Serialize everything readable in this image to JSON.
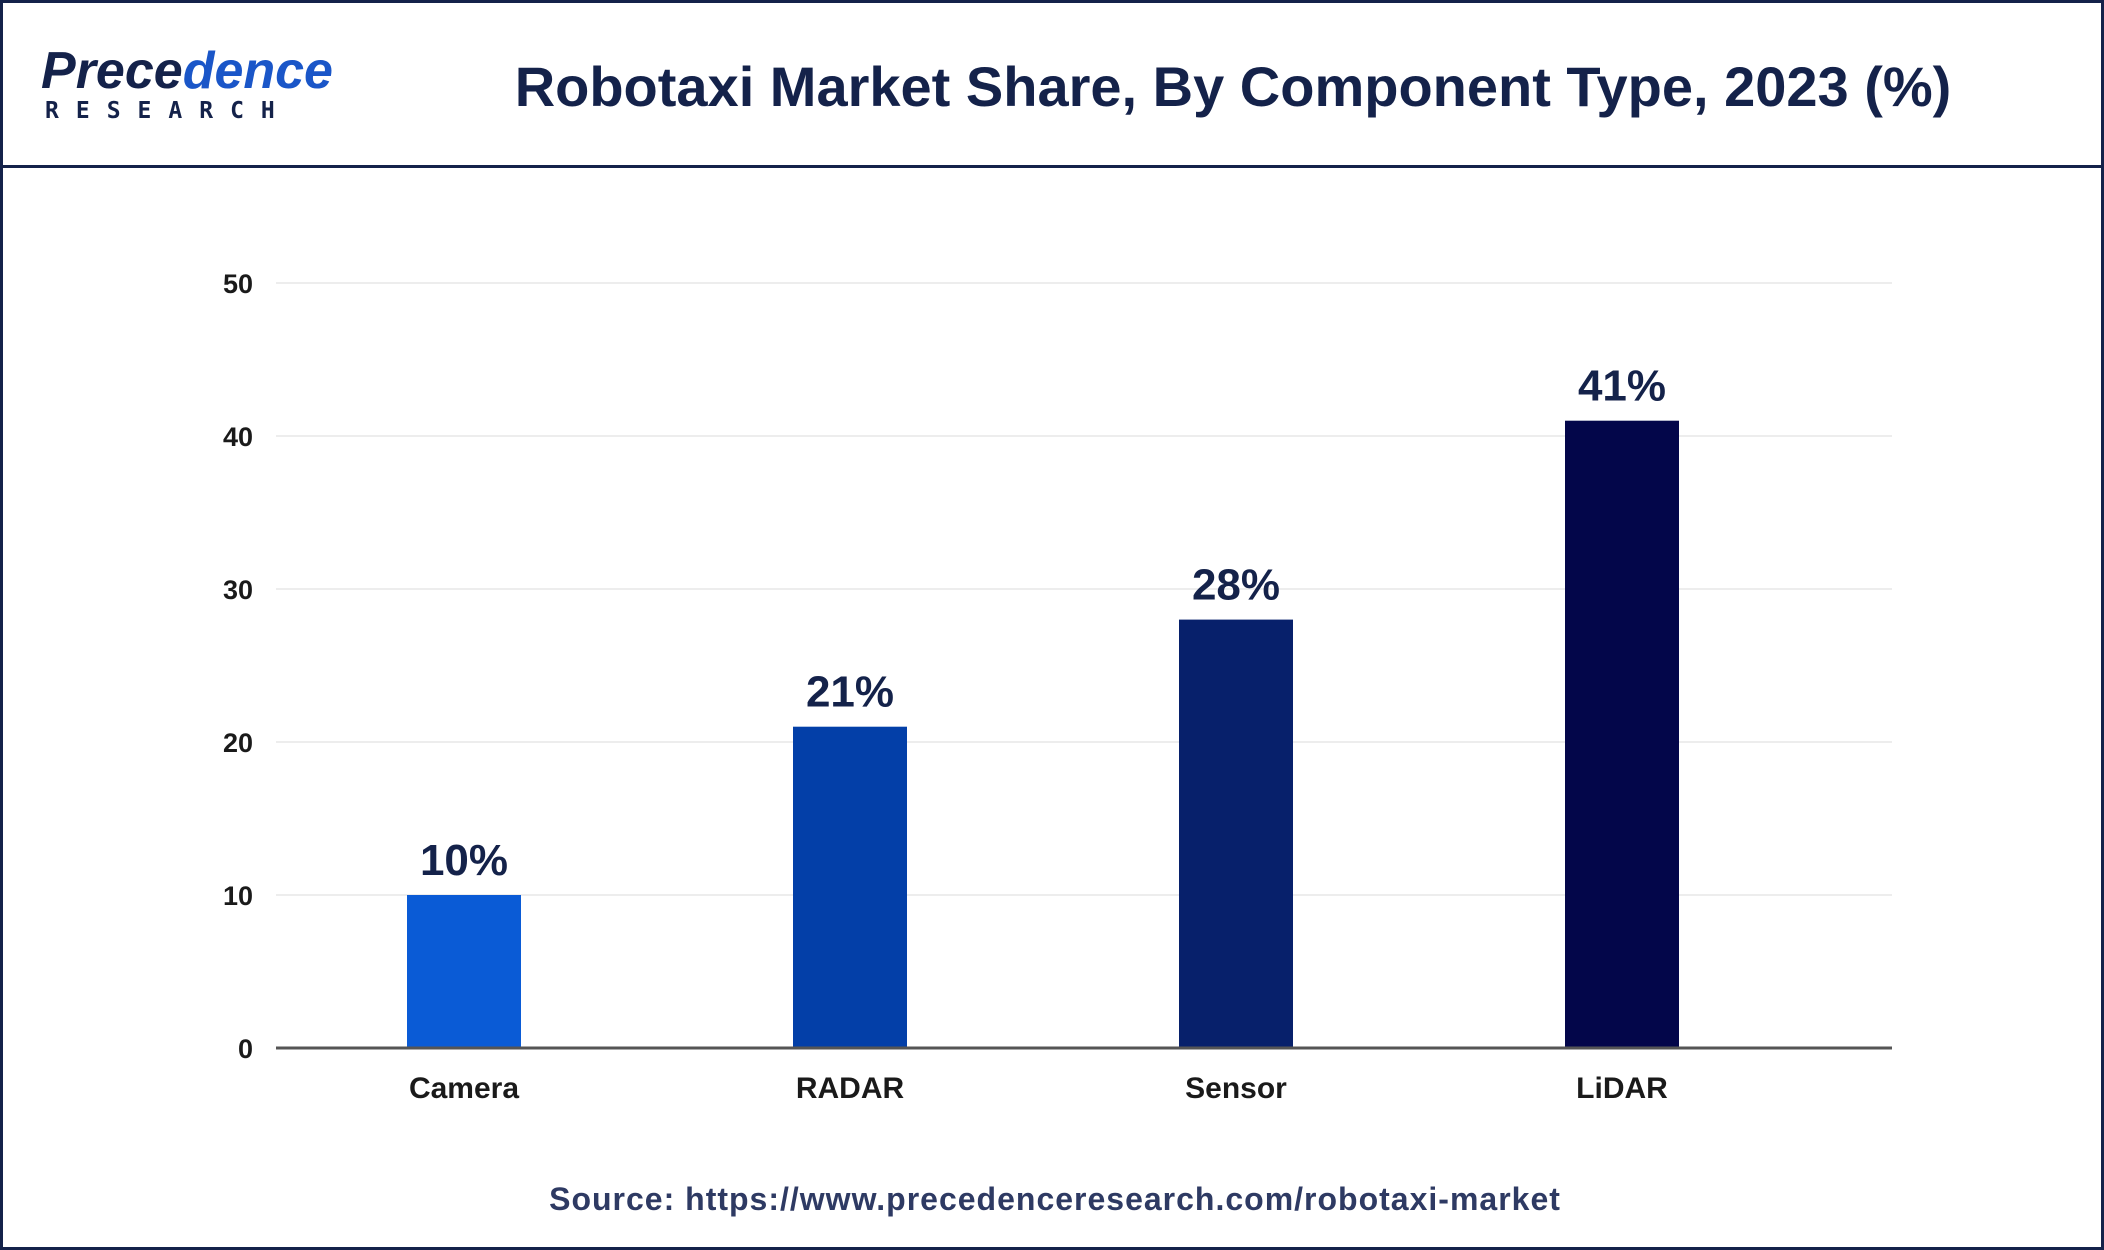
{
  "logo": {
    "word_main": "P",
    "word_rest_dark": "rece",
    "word_rest_accent": "dence",
    "subtitle": "RESEARCH"
  },
  "title": "Robotaxi Market Share, By Component Type, 2023 (%)",
  "source": "Source: https://www.precedenceresearch.com/robotaxi-market",
  "chart_data": {
    "type": "bar",
    "title": "Robotaxi Market Share, By Component Type, 2023 (%)",
    "categories": [
      "Camera",
      "RADAR",
      "Sensor",
      "LiDAR"
    ],
    "values": [
      10,
      21,
      28,
      41
    ],
    "data_labels": [
      "10%",
      "21%",
      "28%",
      "41%"
    ],
    "bar_colors": [
      "#0a5bd6",
      "#033fa8",
      "#07206b",
      "#03064a"
    ],
    "ylim": [
      0,
      50
    ],
    "yticks": [
      0,
      10,
      20,
      30,
      40,
      50
    ],
    "grid": true,
    "xlabel": "",
    "ylabel": ""
  },
  "colors": {
    "navy": "#14224a",
    "axis": "#555555",
    "grid": "#ededed"
  }
}
